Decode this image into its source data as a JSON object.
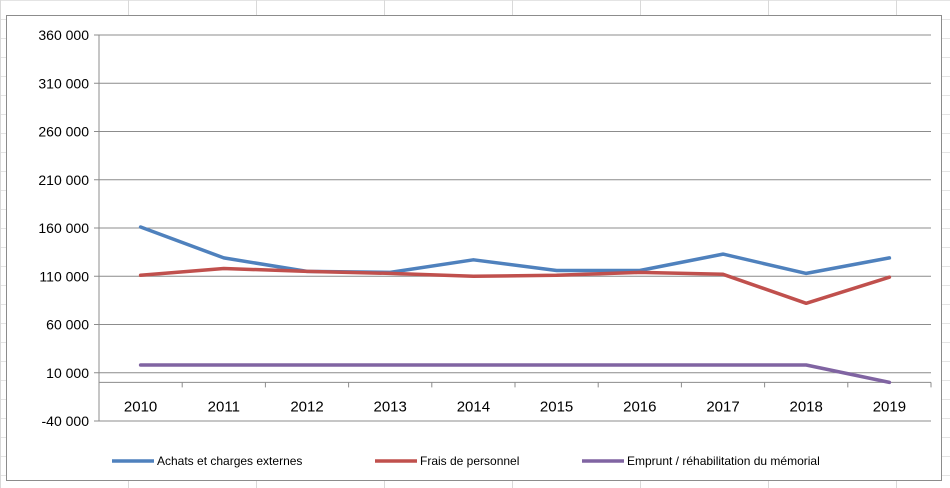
{
  "chart_data": {
    "type": "line",
    "title": "",
    "xlabel": "",
    "ylabel": "",
    "categories": [
      "2010",
      "2011",
      "2012",
      "2013",
      "2014",
      "2015",
      "2016",
      "2017",
      "2018",
      "2019"
    ],
    "y_ticks": [
      -40000,
      10000,
      60000,
      110000,
      160000,
      210000,
      260000,
      310000,
      360000
    ],
    "y_tick_labels": [
      "-40 000",
      "10 000",
      "60 000",
      "110 000",
      "160 000",
      "210 000",
      "260 000",
      "310 000",
      "360 000"
    ],
    "ylim": [
      -40000,
      360000
    ],
    "x_axis_crosses_at": 0,
    "grid": "horizontal",
    "legend_position": "bottom",
    "series": [
      {
        "name": "Achats et charges externes",
        "color": "#4f81bd",
        "values": [
          161000,
          129000,
          115000,
          114000,
          127000,
          116000,
          116000,
          133000,
          113000,
          129000
        ]
      },
      {
        "name": "Frais de personnel",
        "color": "#c0504d",
        "values": [
          111000,
          118000,
          115000,
          113000,
          110000,
          111000,
          114000,
          112000,
          82000,
          109000
        ]
      },
      {
        "name": "Emprunt / réhabilitation du mémorial",
        "color": "#8064a2",
        "values": [
          18000,
          18000,
          18000,
          18000,
          18000,
          18000,
          18000,
          18000,
          18000,
          0
        ]
      }
    ]
  }
}
